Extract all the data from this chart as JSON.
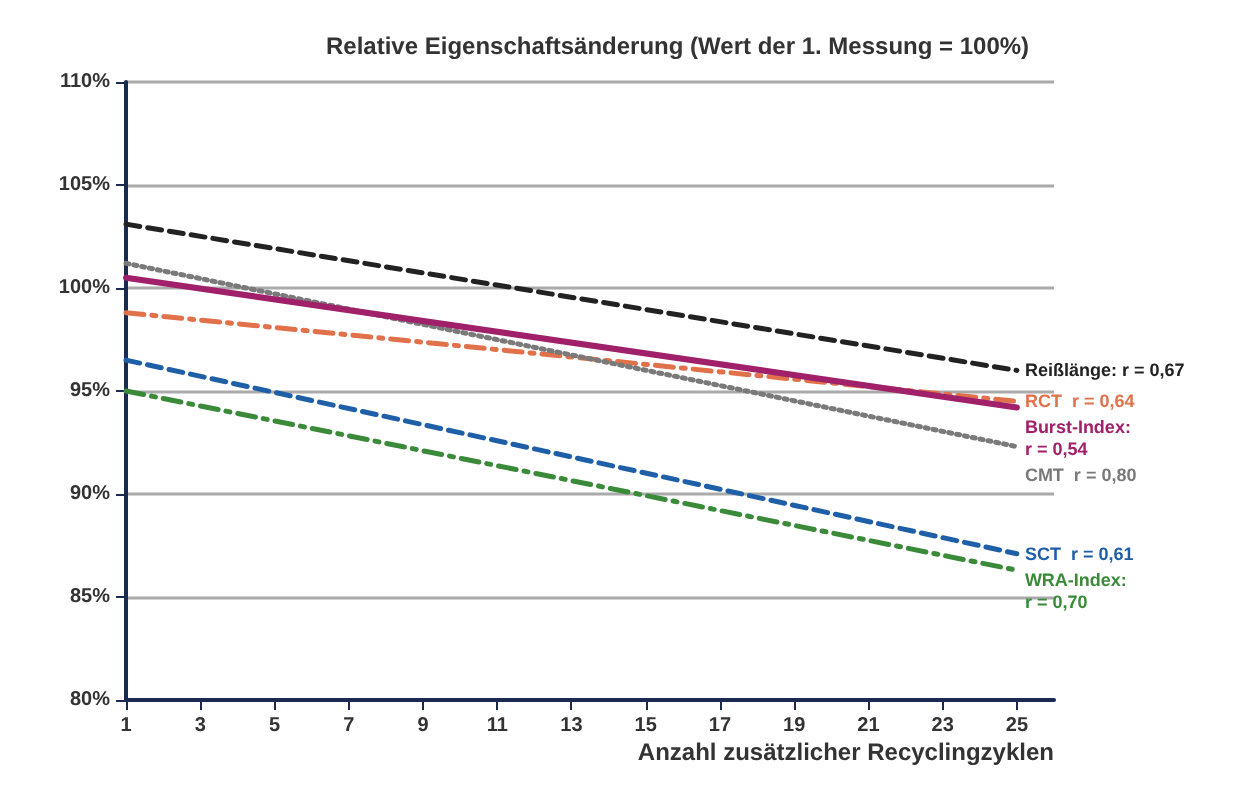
{
  "chart_data": {
    "type": "line",
    "title": "Relative Eigenschaftsänderung (Wert der 1. Messung = 100%)",
    "xlabel": "Anzahl zusätzlicher Recyclingzyklen",
    "x": [
      1,
      25
    ],
    "series": [
      {
        "name": "Reißlänge: r = 0,67",
        "color": "#222222",
        "line_style": "dashed",
        "values": [
          103.1,
          96.0
        ]
      },
      {
        "name": "RCT  r = 0,64",
        "color": "#e0714a",
        "line_style": "dashdot",
        "values": [
          98.8,
          94.5
        ]
      },
      {
        "name": "Burst-Index:\nr = 0,54",
        "color": "#a0206a",
        "line_style": "solid",
        "values": [
          100.5,
          94.2
        ]
      },
      {
        "name": "CMT  r = 0,80",
        "color": "#7a7a7a",
        "line_style": "dotted",
        "values": [
          101.2,
          92.3
        ]
      },
      {
        "name": "SCT  r = 0,61",
        "color": "#1f5fa8",
        "line_style": "dashed",
        "values": [
          96.5,
          87.1
        ]
      },
      {
        "name": "WRA-Index:\nr = 0,70",
        "color": "#3a8a3a",
        "line_style": "dashdot",
        "values": [
          95.0,
          86.3
        ]
      }
    ],
    "xlim": [
      1,
      26
    ],
    "xticks": [
      1,
      3,
      5,
      7,
      9,
      11,
      13,
      15,
      17,
      19,
      21,
      23,
      25
    ],
    "ylim": [
      80,
      110
    ],
    "yticks": [
      {
        "value": 80,
        "label": "80%"
      },
      {
        "value": 85,
        "label": "85%"
      },
      {
        "value": 90,
        "label": "90%"
      },
      {
        "value": 95,
        "label": "95%"
      },
      {
        "value": 100,
        "label": "100%"
      },
      {
        "value": 105,
        "label": "105%"
      },
      {
        "value": 110,
        "label": "110%"
      }
    ],
    "grid": "y",
    "marker": "none",
    "legend": false
  }
}
